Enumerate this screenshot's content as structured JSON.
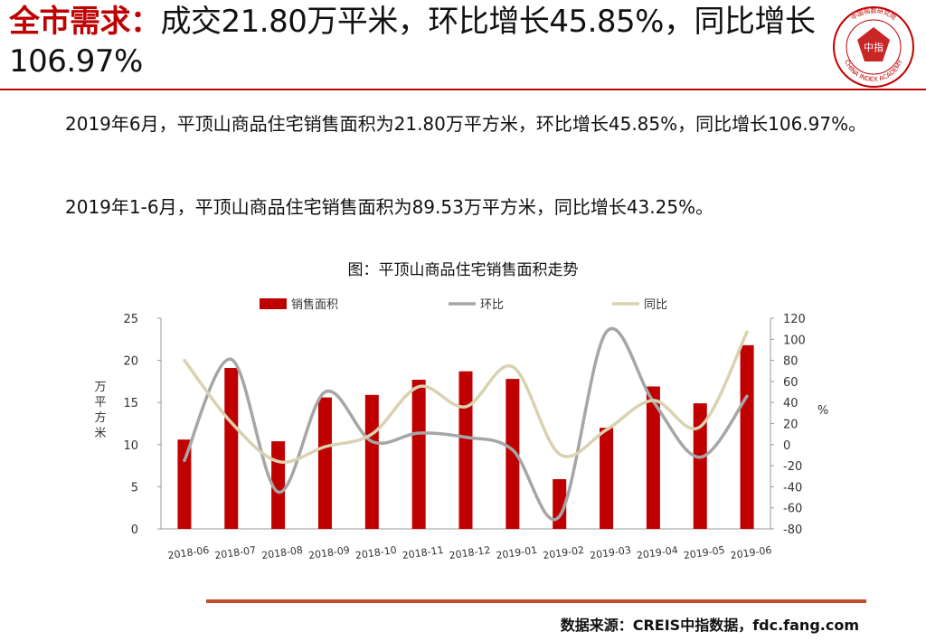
{
  "title": {
    "highlight": "全市需求：",
    "rest": "成交21.80万平米，环比增长45.85%，同比增长106.97%"
  },
  "logo": {
    "center_text": "中指",
    "ring_text": "CHINA INDEX ACADEMY",
    "top_text": "中国指数研究院"
  },
  "paragraphs": [
    "2019年6月，平顶山商品住宅销售面积为21.80万平方米，环比增长45.85%，同比增长106.97%。",
    "2019年1-6月，平顶山商品住宅销售面积为89.53万平方米，同比增长43.25%。"
  ],
  "chart_title": "图：平顶山商品住宅销售面积走势",
  "chart_data": {
    "type": "bar",
    "categories": [
      "2018-06",
      "2018-07",
      "2018-08",
      "2018-09",
      "2018-10",
      "2018-11",
      "2018-12",
      "2019-01",
      "2019-02",
      "2019-03",
      "2019-04",
      "2019-05",
      "2019-06"
    ],
    "series": [
      {
        "name": "销售面积",
        "type": "bar",
        "axis": "left",
        "color": "#c00000",
        "values": [
          10.6,
          19.1,
          10.4,
          15.6,
          15.9,
          17.7,
          18.7,
          17.8,
          5.9,
          12.0,
          16.9,
          14.9,
          21.8
        ]
      },
      {
        "name": "环比",
        "type": "line",
        "axis": "right",
        "color": "#a6a6a6",
        "values": [
          -15,
          81,
          -45,
          50,
          3,
          11,
          7,
          -5,
          -68,
          107,
          41,
          -12,
          46
        ]
      },
      {
        "name": "同比",
        "type": "line",
        "axis": "right",
        "color": "#d9d2b0",
        "values": [
          80,
          21,
          -16,
          -2,
          10,
          55,
          36,
          74,
          -9,
          14,
          42,
          17,
          107
        ]
      }
    ],
    "ylabel": "万平方米",
    "y2label": "%",
    "ylim": [
      0,
      25
    ],
    "y_ticks": [
      0,
      5,
      10,
      15,
      20,
      25
    ],
    "y2lim": [
      -80,
      120
    ],
    "y2_ticks": [
      -80,
      -60,
      -40,
      -20,
      0,
      20,
      40,
      60,
      80,
      100,
      120
    ],
    "legend_position": "top",
    "grid": false
  },
  "source": "数据来源：CREIS中指数据，fdc.fang.com"
}
